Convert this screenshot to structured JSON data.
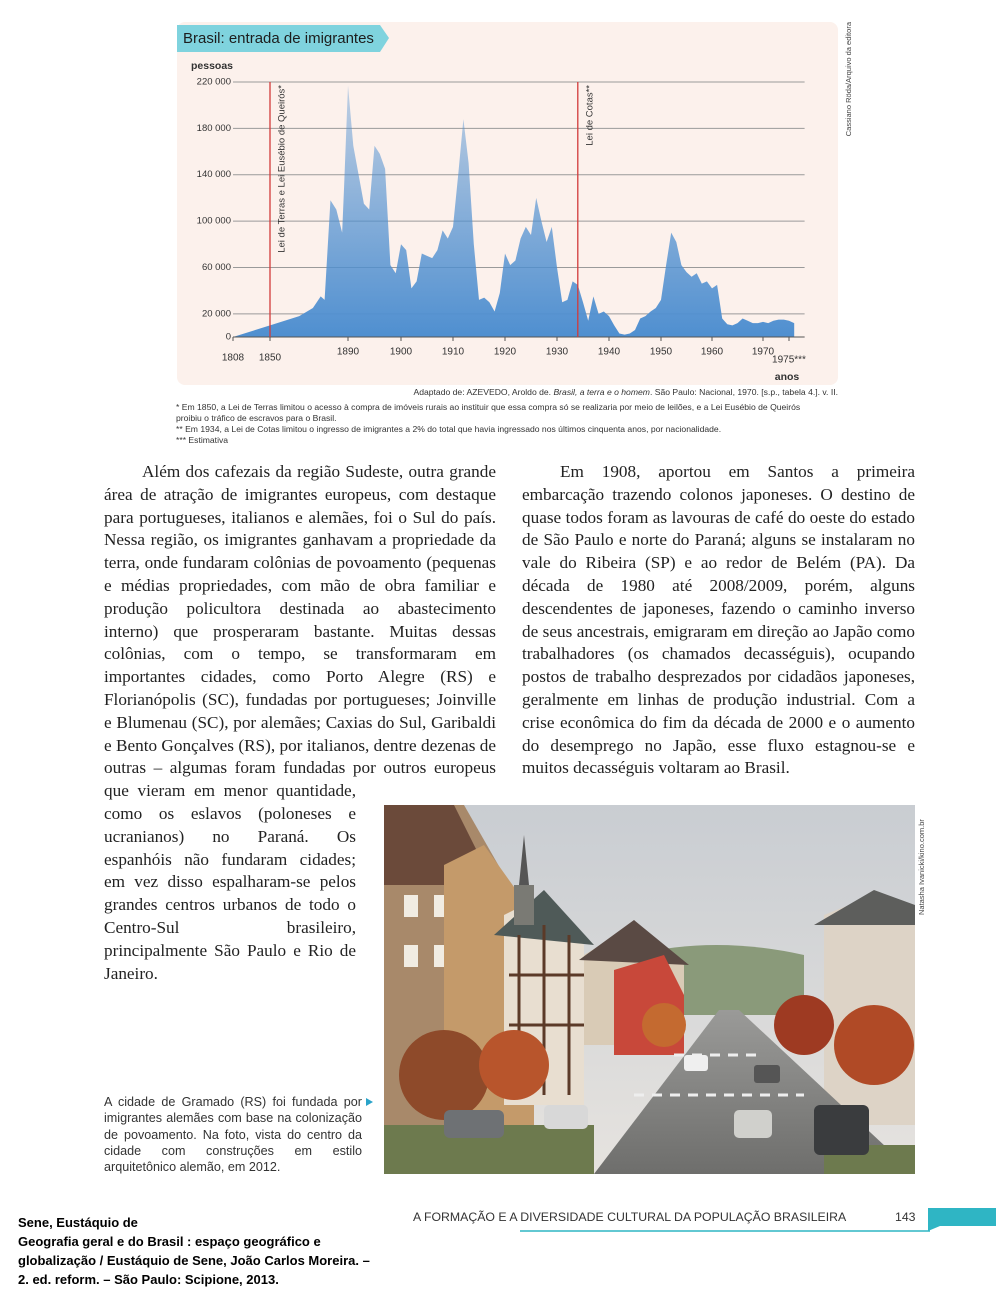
{
  "chart_data": {
    "type": "area",
    "title": "Brasil: entrada de imigrantes",
    "ylabel": "pessoas",
    "xlabel": "anos",
    "color": "#4f8fd0",
    "grid": true,
    "x": [
      1808,
      1850,
      1865,
      1872,
      1876,
      1878,
      1881,
      1884,
      1887,
      1888,
      1890,
      1891,
      1892,
      1893,
      1894,
      1895,
      1896,
      1897,
      1898,
      1899,
      1900,
      1901,
      1902,
      1903,
      1904,
      1905,
      1906,
      1907,
      1908,
      1909,
      1910,
      1911,
      1912,
      1913,
      1914,
      1915,
      1916,
      1917,
      1918,
      1919,
      1920,
      1921,
      1922,
      1923,
      1924,
      1925,
      1926,
      1927,
      1928,
      1929,
      1930,
      1931,
      1932,
      1933,
      1934,
      1935,
      1936,
      1937,
      1938,
      1939,
      1940,
      1941,
      1942,
      1943,
      1944,
      1945,
      1946,
      1947,
      1948,
      1949,
      1950,
      1951,
      1952,
      1953,
      1954,
      1955,
      1956,
      1957,
      1958,
      1959,
      1960,
      1961,
      1962,
      1963,
      1964,
      1965,
      1966,
      1967,
      1968,
      1969,
      1970,
      1971,
      1972,
      1973,
      1974,
      1975,
      1976
    ],
    "values": [
      0,
      10000,
      18000,
      25000,
      35000,
      32000,
      118000,
      110000,
      90000,
      130000,
      217000,
      165000,
      140000,
      115000,
      110000,
      165000,
      158000,
      145000,
      62000,
      55000,
      80000,
      75000,
      42000,
      48000,
      72000,
      70000,
      68000,
      75000,
      92000,
      85000,
      95000,
      140000,
      188000,
      150000,
      80000,
      32000,
      34000,
      30000,
      22000,
      38000,
      72000,
      62000,
      66000,
      85000,
      95000,
      88000,
      120000,
      100000,
      82000,
      95000,
      60000,
      30000,
      32000,
      48000,
      45000,
      30000,
      14000,
      35000,
      20000,
      22000,
      18000,
      10000,
      3000,
      2000,
      3000,
      6000,
      16000,
      18000,
      22000,
      25000,
      32000,
      62000,
      90000,
      82000,
      62000,
      56000,
      52000,
      55000,
      46000,
      48000,
      42000,
      45000,
      16000,
      11000,
      10000,
      12000,
      16000,
      14000,
      12000,
      12000,
      13000,
      12000,
      14000,
      15000,
      15000,
      14000,
      12000
    ],
    "xlim": [
      1808,
      1978
    ],
    "xticks": [
      1808,
      1850,
      1890,
      1900,
      1910,
      1920,
      1930,
      1940,
      1950,
      1960,
      1970,
      {
        "value": 1975,
        "label": "1975***"
      }
    ],
    "ylim": [
      0,
      220000
    ],
    "yticks": [
      {
        "value": 0,
        "label": "0"
      },
      {
        "value": 20000,
        "label": "20 000"
      },
      {
        "value": 60000,
        "label": "60 000"
      },
      {
        "value": 100000,
        "label": "100 000"
      },
      {
        "value": 140000,
        "label": "140 000"
      },
      {
        "value": 180000,
        "label": "180 000"
      },
      {
        "value": 220000,
        "label": "220 000"
      }
    ],
    "annotations": [
      {
        "x": 1850,
        "text": "Lei de Terras e Lei Eusébio de Queirós*",
        "color": "#d23a3a"
      },
      {
        "x": 1934,
        "text": "Lei de Cotas**",
        "color": "#d23a3a"
      }
    ]
  },
  "credit": "Cassiano Röda/Arquivo da editora",
  "source": [
    "Adaptado de: AZEVEDO, Aroldo de. ",
    "Brasil, a terra e o homem",
    ". São Paulo: Nacional, 1970. [s.p., tabela 4.]. v. II."
  ],
  "footnotes": [
    "* Em 1850, a Lei de Terras limitou o acesso à compra de imóveis rurais ao instituir que essa compra só se realizaria por meio de leilões, e a Lei Eusébio de Queirós proibiu o tráfico de escravos para o Brasil.",
    "** Em 1934, a Lei de Cotas limitou o ingresso de imigrantes a 2% do total que havia ingressado nos últimos cinquenta anos, por nacionalidade.",
    "*** Estimativa"
  ],
  "paragraphs": {
    "left": "Além dos cafezais da região Sudeste, outra grande área de atração de imigrantes europeus, com destaque para portugueses, italianos e alemães, foi o Sul do país. Nessa região, os imigrantes ganhavam a propriedade da terra, onde fundaram colônias de povoamento (pequenas e médias propriedades, com mão de obra familiar e produção policultora destinada ao abastecimento interno) que prosperaram bastante. Muitas dessas colônias, com o tempo, se transformaram em importantes cidades, como Porto Alegre (RS) e Florianópolis (SC), fundadas por portugueses; Joinville e Blumenau (SC), por alemães; Caxias do Sul, Garibaldi e Bento Gonçalves (RS), por italianos, dentre dezenas de outras – algumas foram fundadas por outros europeus que vieram em menor quantidade, como os eslavos (poloneses e ucranianos) no Paraná. Os espanhóis não fundaram cidades; em vez disso espalharam-se pelos grandes centros urbanos de todo o Centro-Sul brasileiro, principalmente São Paulo e Rio de Janeiro.",
    "right": "Em 1908, aportou em Santos a primeira embarcação trazendo colonos japoneses. O destino de quase todos foram as lavouras de café do oeste do estado de São Paulo e norte do Paraná; alguns se instalaram no vale do Ribeira (SP) e ao redor de Belém (PA). Da década de 1980 até 2008/2009, porém, alguns descendentes de japoneses, fazendo o caminho inverso de seus ancestrais, emigraram em direção ao Japão como trabalhadores (os chamados decasséguis), ocupando postos de trabalho desprezados por cidadãos japoneses, geralmente em linhas de produção industrial. Com a crise econômica do fim da década de 2000 e o aumento do desemprego no Japão, esse fluxo estagnou-se e muitos decasséguis voltaram ao Brasil."
  },
  "photo": {
    "credit": "Natasha Ivanicki/kino.com.br",
    "caption": "A cidade de Gramado (RS) foi fundada por imigrantes alemães com base na colonização de povoamento. Na foto, vista do centro da cidade com construções em estilo arquitetônico alemão, em 2012."
  },
  "footer": {
    "running_head": "A FORMAÇÃO E A DIVERSIDADE CULTURAL DA POPULAÇÃO BRASILEIRA",
    "page": "143"
  },
  "citation": [
    "Sene, Eustáquio de",
    "Geografia geral e do Brasil : espaço geográfico e",
    "globalização / Eustáquio de Sene, João Carlos Moreira. –",
    "2. ed. reform. – São Paulo: Scipione, 2013."
  ]
}
